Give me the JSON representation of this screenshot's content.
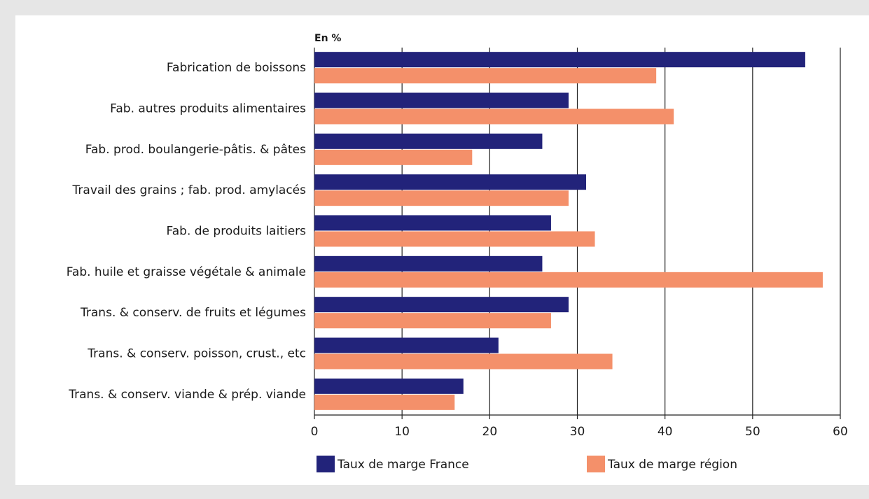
{
  "chart_data": {
    "type": "hbar",
    "axis_label": "En %",
    "categories": [
      "Fabrication de boissons",
      "Fab. autres produits alimentaires",
      "Fab. prod. boulangerie-pâtis. & pâtes",
      "Travail des grains ; fab. prod. amylacés",
      "Fab. de produits laitiers",
      "Fab. huile et graisse végétale & animale",
      "Trans. & conserv. de fruits et légumes",
      "Trans. & conserv. poisson, crust., etc",
      "Trans. & conserv. viande & prép. viande"
    ],
    "series": [
      {
        "name": "Taux de marge France",
        "color": "#22237a",
        "values": [
          56,
          29,
          26,
          31,
          27,
          26,
          29,
          21,
          17
        ]
      },
      {
        "name": "Taux de marge région",
        "color": "#f4906a",
        "values": [
          39,
          41,
          18,
          29,
          32,
          58,
          27,
          34,
          16
        ]
      }
    ],
    "xlim": [
      0,
      60
    ],
    "xticks": [
      0,
      10,
      20,
      30,
      40,
      50,
      60
    ],
    "grid": true,
    "legend": "bottom"
  }
}
